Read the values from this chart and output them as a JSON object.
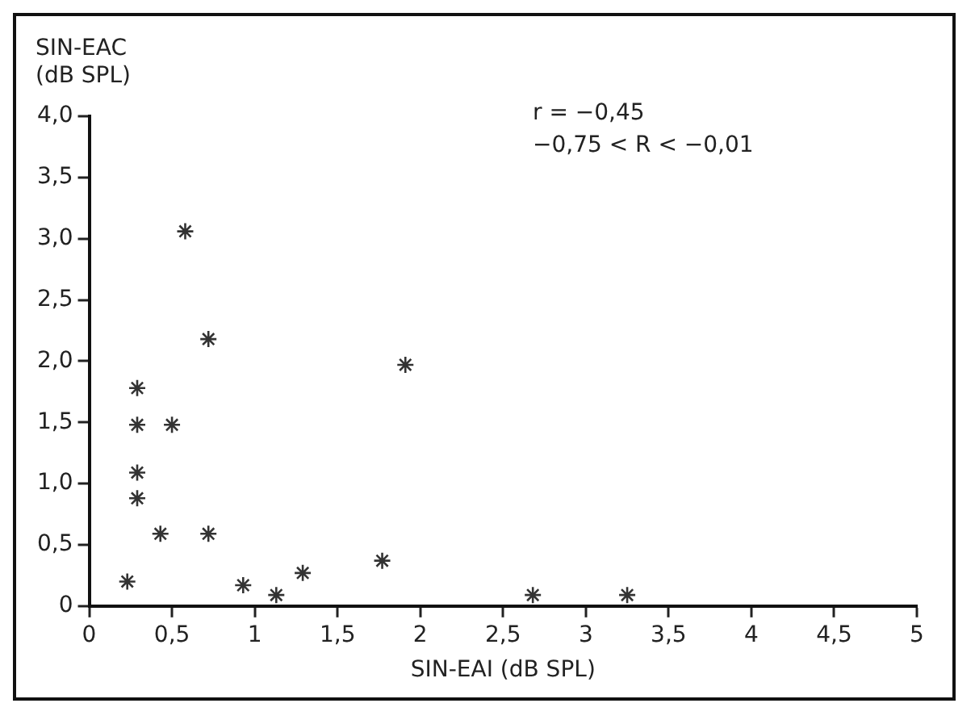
{
  "chart_data": {
    "type": "scatter",
    "xlabel": "SIN-EAI (dB SPL)",
    "ylabel": "SIN-EAC (dB SPL)",
    "annotations": [
      "r = −0,45",
      "−0,75 < R < −0,01"
    ],
    "x": [
      0.23,
      0.29,
      0.29,
      0.5,
      0.29,
      0.29,
      0.43,
      0.72,
      0.72,
      0.58,
      0.93,
      1.13,
      1.29,
      1.77,
      1.91,
      2.68,
      3.25
    ],
    "values": [
      0.2,
      1.78,
      1.48,
      1.48,
      1.09,
      0.88,
      0.59,
      0.59,
      2.18,
      3.06,
      0.17,
      0.09,
      0.27,
      0.37,
      1.97,
      0.09,
      0.09
    ],
    "color": "#333333",
    "marker": "cross",
    "grid": false,
    "legend": false,
    "xlim": [
      0,
      5
    ],
    "ylim": [
      0,
      4
    ],
    "xticks": [
      0,
      {
        "value": 0.5,
        "label": "0,5"
      },
      1,
      {
        "value": 1.5,
        "label": "1,5"
      },
      2,
      {
        "value": 2.5,
        "label": "2,5"
      },
      3,
      {
        "value": 3.5,
        "label": "3,5"
      },
      4,
      {
        "value": 4.5,
        "label": "4,5"
      },
      5
    ],
    "yticks": [
      0,
      {
        "value": 0.5,
        "label": "0,5"
      },
      {
        "value": 1,
        "label": "1,0"
      },
      {
        "value": 1.5,
        "label": "1,5"
      },
      {
        "value": 2,
        "label": "2,0"
      },
      {
        "value": 2.5,
        "label": "2,5"
      },
      {
        "value": 3,
        "label": "3,0"
      },
      {
        "value": 3.5,
        "label": "3,5"
      },
      {
        "value": 4,
        "label": "4,0"
      }
    ]
  }
}
